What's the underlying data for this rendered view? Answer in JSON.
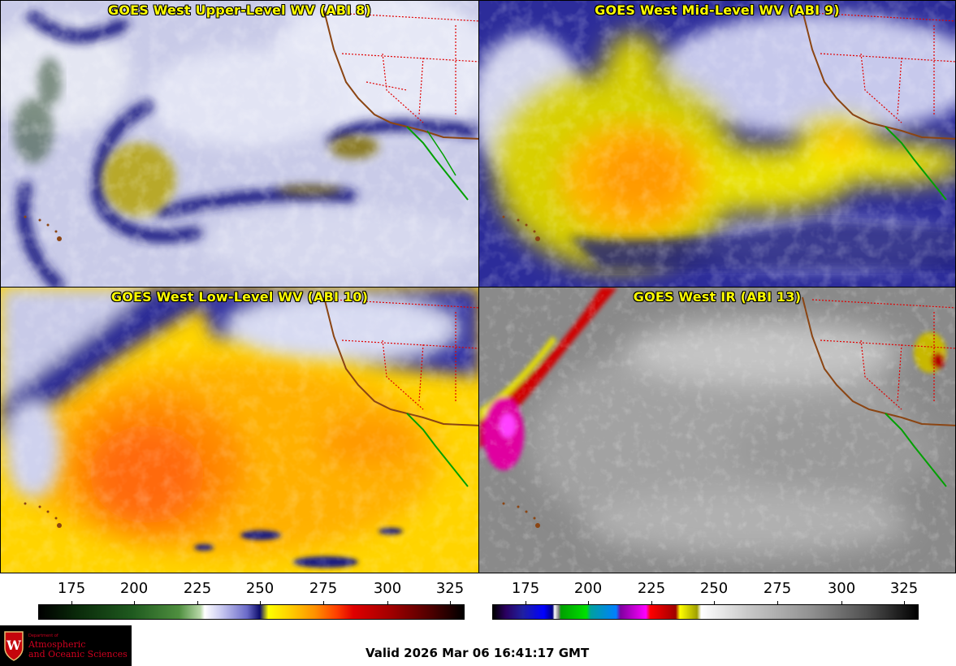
{
  "panels": {
    "upper_level": {
      "title": "GOES West Upper-Level WV (ABI 8)"
    },
    "mid_level": {
      "title": "GOES West Mid-Level WV (ABI 9)"
    },
    "low_level": {
      "title": "GOES West Low-Level WV (ABI 10)"
    },
    "infrared": {
      "title": "GOES West IR (ABI 13)"
    }
  },
  "colorbars": {
    "water_vapor": {
      "ticks": [
        "175",
        "200",
        "225",
        "250",
        "275",
        "300",
        "325"
      ]
    },
    "infrared": {
      "ticks": [
        "175",
        "200",
        "225",
        "250",
        "275",
        "300",
        "325"
      ]
    }
  },
  "logo": {
    "department": "Department of",
    "line1": "Atmospheric",
    "line2": "and Oceanic Sciences",
    "crest_letter": "W"
  },
  "footer": {
    "valid_time": "Valid 2026 Mar 06 16:41:17 GMT"
  },
  "colors": {
    "title": "#ffff00",
    "state_borders": "#e00000",
    "coastline": "#8b4513",
    "mexico_coast": "#00a000",
    "logo_text": "#d0001f"
  }
}
